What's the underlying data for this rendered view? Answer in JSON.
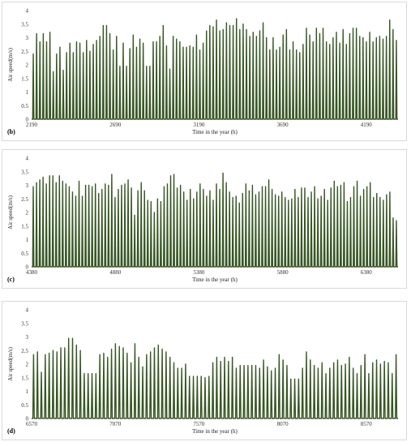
{
  "chart_data": [
    {
      "panel_label": "(b)",
      "type": "line",
      "xlabel": "Time in the year (h)",
      "ylabel": "Air speed(m/s)",
      "ylim": [
        0,
        4
      ],
      "yticks": [
        0,
        0.5,
        1,
        1.5,
        2,
        2.5,
        3,
        3.5,
        4
      ],
      "xlim": [
        2190,
        4380
      ],
      "xticks": [
        2190,
        2690,
        3190,
        3690,
        4190
      ],
      "line_color": "#375623",
      "fill_color": "#ffffff",
      "daily_peaks": [
        2.4,
        3.15,
        2.85,
        3.15,
        2.85,
        3.2,
        1.75,
        2.4,
        2.65,
        1.8,
        2.45,
        2.8,
        2.45,
        2.85,
        2.8,
        2.45,
        2.9,
        2.5,
        2.75,
        2.9,
        3.05,
        3.45,
        3.45,
        3.15,
        2.55,
        3.05,
        1.95,
        2.8,
        1.95,
        2.6,
        3.1,
        2.65,
        2.95,
        2.8,
        1.95,
        1.95,
        2.85,
        2.85,
        3.05,
        3.45,
        2.7,
        1.85,
        3.05,
        2.95,
        2.85,
        2.65,
        2.65,
        2.7,
        2.65,
        3.1,
        2.55,
        2.8,
        3.25,
        3.45,
        3.4,
        3.65,
        3.25,
        3.3,
        3.55,
        3.45,
        3.45,
        3.7,
        3.3,
        3.5,
        3.3,
        3.05,
        3.2,
        3.05,
        3.25,
        3.55,
        3.0,
        2.55,
        3.0,
        2.55,
        2.65,
        3.1,
        3.3,
        2.55,
        2.85,
        2.55,
        2.45,
        2.75,
        3.35,
        3.1,
        2.85,
        3.35,
        3.15,
        3.35,
        2.85,
        2.75,
        3.0,
        3.2,
        2.8,
        3.3,
        2.75,
        3.15,
        3.35,
        3.35,
        3.05,
        3.0,
        2.85,
        3.2,
        2.85,
        3.0,
        3.05,
        2.95,
        3.05,
        3.65,
        3.3,
        2.9
      ],
      "daily_min": 0
    },
    {
      "panel_label": "(c)",
      "type": "line",
      "xlabel": "Time in the year (h)",
      "ylabel": "Air speed(m/s)",
      "ylim": [
        0,
        4
      ],
      "yticks": [
        0,
        0.5,
        1,
        1.5,
        2,
        2.5,
        3,
        3.5,
        4
      ],
      "xlim": [
        4380,
        6570
      ],
      "xticks": [
        4380,
        4880,
        5380,
        5880,
        6380
      ],
      "line_color": "#375623",
      "fill_color": "#ffffff",
      "daily_peaks": [
        2.95,
        3.1,
        3.2,
        3.3,
        3.05,
        3.35,
        3.35,
        3.1,
        3.35,
        3.15,
        3.05,
        2.95,
        2.75,
        2.6,
        3.15,
        2.6,
        3.0,
        3.0,
        2.95,
        3.05,
        2.7,
        2.85,
        3.05,
        3.0,
        3.4,
        2.55,
        2.85,
        3.0,
        3.05,
        3.2,
        2.9,
        1.9,
        2.8,
        3.1,
        2.8,
        2.45,
        2.4,
        2.0,
        2.5,
        2.4,
        2.95,
        3.05,
        3.35,
        3.4,
        2.9,
        3.0,
        2.75,
        2.45,
        2.85,
        2.5,
        2.75,
        3.05,
        2.85,
        2.6,
        2.8,
        2.45,
        3.05,
        2.85,
        3.45,
        3.1,
        2.75,
        2.55,
        2.6,
        2.35,
        2.7,
        3.05,
        2.8,
        3.0,
        2.65,
        2.75,
        2.95,
        2.95,
        3.2,
        2.85,
        2.65,
        2.6,
        2.75,
        2.55,
        2.45,
        2.5,
        2.85,
        2.55,
        2.9,
        2.9,
        2.55,
        2.75,
        2.95,
        2.5,
        2.6,
        2.85,
        2.45,
        2.9,
        3.15,
        2.95,
        3.0,
        3.1,
        2.4,
        2.55,
        2.95,
        3.15,
        2.6,
        2.85,
        2.95,
        3.1,
        2.55,
        2.7,
        2.55,
        2.45,
        2.65,
        2.75,
        1.8,
        1.7
      ],
      "daily_min": 0
    },
    {
      "panel_label": "(d)",
      "type": "line",
      "xlabel": "Time in the year (h)",
      "ylabel": "Air speed(m/s)",
      "ylim": [
        0,
        4
      ],
      "yticks": [
        0,
        0.5,
        1,
        1.5,
        2,
        2.5,
        3,
        3.5,
        4
      ],
      "xlim": [
        6570,
        8760
      ],
      "xticks": [
        6570,
        7070,
        7570,
        8070,
        8570
      ],
      "line_color": "#375623",
      "fill_color": "#ffffff",
      "daily_peaks": [
        2.35,
        2.45,
        1.7,
        2.35,
        2.4,
        2.5,
        2.45,
        2.6,
        2.6,
        2.95,
        2.95,
        2.7,
        2.5,
        1.65,
        1.65,
        1.65,
        1.65,
        2.35,
        2.4,
        2.25,
        2.55,
        2.75,
        2.65,
        2.6,
        2.4,
        2.05,
        2.75,
        2.25,
        1.9,
        2.35,
        2.45,
        2.6,
        2.7,
        2.55,
        2.45,
        2.25,
        2.05,
        1.85,
        1.85,
        2.0,
        1.55,
        1.55,
        1.55,
        1.55,
        1.5,
        1.55,
        2.05,
        2.25,
        2.1,
        2.25,
        2.1,
        2.25,
        1.85,
        1.95,
        1.95,
        1.95,
        1.95,
        1.95,
        1.85,
        2.15,
        1.9,
        1.75,
        1.85,
        2.35,
        2.15,
        1.95,
        1.45,
        1.45,
        1.45,
        1.85,
        2.45,
        2.15,
        1.95,
        1.85,
        2.05,
        1.65,
        1.85,
        2.05,
        2.15,
        1.95,
        2.0,
        2.25,
        1.85,
        1.65,
        1.95,
        2.35,
        1.65,
        2.05,
        2.15,
        2.0,
        2.1,
        2.05,
        1.65,
        2.35
      ],
      "daily_min": 0
    }
  ]
}
